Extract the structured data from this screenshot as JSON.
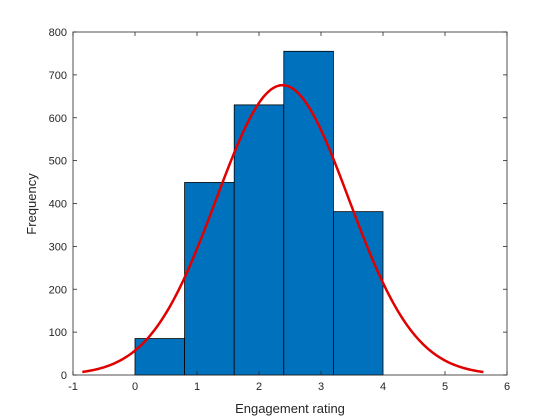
{
  "chart_data": {
    "type": "bar",
    "title": "",
    "xlabel": "Engagement rating",
    "ylabel": "Frequency",
    "xlim": [
      -1,
      6
    ],
    "ylim": [
      0,
      800
    ],
    "xticks": [
      -1,
      0,
      1,
      2,
      3,
      4,
      5,
      6
    ],
    "yticks": [
      0,
      100,
      200,
      300,
      400,
      500,
      600,
      700,
      800
    ],
    "grid": false,
    "bins": [
      {
        "x0": 0.0,
        "x1": 0.8,
        "value": 85
      },
      {
        "x0": 0.8,
        "x1": 1.6,
        "value": 449
      },
      {
        "x0": 1.6,
        "x1": 2.4,
        "value": 630
      },
      {
        "x0": 2.4,
        "x1": 3.2,
        "value": 755
      },
      {
        "x0": 3.2,
        "x1": 4.0,
        "value": 381
      }
    ],
    "fit_curve": {
      "type": "normal",
      "mean": 2.38,
      "std": 1.07,
      "peak": 676,
      "x_range": [
        -0.85,
        5.62
      ]
    },
    "colors": {
      "bar_fill": "#0072BD",
      "bar_edge": "#000000",
      "fit_line": "#E00000",
      "axis": "#262626"
    }
  }
}
